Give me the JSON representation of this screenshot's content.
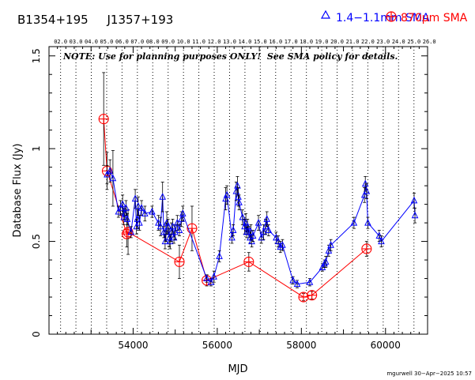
{
  "header": {
    "source_names": "B1354+195     J1357+193",
    "legend_sma_mm": "1.4−1.1mm SMA",
    "legend_sma_870": "870μm SMA",
    "note": "NOTE: Use for planning purposes ONLY!  See SMA policy for details.",
    "footer": "mgurwell 30−Apr−2025 10:57"
  },
  "colors": {
    "series_mm": "#0000ff",
    "series_870": "#ff0000",
    "axes": "#000000",
    "grid": "#000000"
  },
  "chart_data": {
    "type": "scatter",
    "title": "B1354+195     J1357+193",
    "xlabel": "MJD",
    "ylabel": "Database Flux (Jy)",
    "xlim": [
      52000,
      61000
    ],
    "ylim": [
      0,
      1.55
    ],
    "xticks": [
      54000,
      56000,
      58000,
      60000
    ],
    "yticks": [
      0,
      0.5,
      1,
      1.5
    ],
    "ytick_labels": [
      "0",
      "0.5",
      "1",
      "1.5"
    ],
    "top_axis": {
      "labels": [
        "02.0",
        "03.0",
        "04.0",
        "05.0",
        "06.0",
        "07.0",
        "08.0",
        "09.0",
        "10.0",
        "11.0",
        "12.0",
        "13.0",
        "14.0",
        "15.0",
        "16.0",
        "17.0",
        "18.0",
        "19.0",
        "20.0",
        "21.0",
        "22.0",
        "23.0",
        "24.0",
        "25.0",
        "26.0"
      ],
      "mjd": [
        52275,
        52640,
        53005,
        53371,
        53736,
        54101,
        54466,
        54832,
        55197,
        55562,
        55927,
        56293,
        56658,
        57023,
        57388,
        57754,
        58119,
        58484,
        58849,
        59215,
        59580,
        59945,
        60310,
        60676,
        61041
      ]
    },
    "series": [
      {
        "name": "1.4−1.1mm SMA",
        "marker": "triangle",
        "points": [
          {
            "x": 53380,
            "y": 0.86,
            "err": 0.05
          },
          {
            "x": 53450,
            "y": 0.88,
            "err": 0.06
          },
          {
            "x": 53520,
            "y": 0.84,
            "err": 0.15
          },
          {
            "x": 53650,
            "y": 0.66,
            "err": 0.03
          },
          {
            "x": 53700,
            "y": 0.68,
            "err": 0.04
          },
          {
            "x": 53750,
            "y": 0.7,
            "err": 0.05
          },
          {
            "x": 53780,
            "y": 0.63,
            "err": 0.04
          },
          {
            "x": 53800,
            "y": 0.65,
            "err": 0.03
          },
          {
            "x": 53830,
            "y": 0.68,
            "err": 0.04
          },
          {
            "x": 53860,
            "y": 0.62,
            "err": 0.03
          },
          {
            "x": 53950,
            "y": 0.55,
            "err": 0.03
          },
          {
            "x": 54050,
            "y": 0.73,
            "err": 0.05
          },
          {
            "x": 54080,
            "y": 0.58,
            "err": 0.04
          },
          {
            "x": 54100,
            "y": 0.62,
            "err": 0.05
          },
          {
            "x": 54120,
            "y": 0.69,
            "err": 0.05
          },
          {
            "x": 54150,
            "y": 0.6,
            "err": 0.04
          },
          {
            "x": 54200,
            "y": 0.68,
            "err": 0.04
          },
          {
            "x": 54280,
            "y": 0.65,
            "err": 0.04
          },
          {
            "x": 54450,
            "y": 0.66,
            "err": 0.03
          },
          {
            "x": 54600,
            "y": 0.6,
            "err": 0.04
          },
          {
            "x": 54650,
            "y": 0.58,
            "err": 0.05
          },
          {
            "x": 54700,
            "y": 0.74,
            "err": 0.08
          },
          {
            "x": 54730,
            "y": 0.55,
            "err": 0.03
          },
          {
            "x": 54760,
            "y": 0.5,
            "err": 0.04
          },
          {
            "x": 54780,
            "y": 0.55,
            "err": 0.05
          },
          {
            "x": 54800,
            "y": 0.6,
            "err": 0.06
          },
          {
            "x": 54830,
            "y": 0.58,
            "err": 0.04
          },
          {
            "x": 54860,
            "y": 0.52,
            "err": 0.05
          },
          {
            "x": 54880,
            "y": 0.5,
            "err": 0.04
          },
          {
            "x": 54910,
            "y": 0.55,
            "err": 0.05
          },
          {
            "x": 54940,
            "y": 0.58,
            "err": 0.04
          },
          {
            "x": 54970,
            "y": 0.52,
            "err": 0.03
          },
          {
            "x": 55000,
            "y": 0.55,
            "err": 0.04
          },
          {
            "x": 55050,
            "y": 0.6,
            "err": 0.04
          },
          {
            "x": 55100,
            "y": 0.56,
            "err": 0.03
          },
          {
            "x": 55150,
            "y": 0.62,
            "err": 0.04
          },
          {
            "x": 55180,
            "y": 0.65,
            "err": 0.04
          },
          {
            "x": 55750,
            "y": 0.3,
            "err": 0.02
          },
          {
            "x": 55850,
            "y": 0.28,
            "err": 0.02
          },
          {
            "x": 55920,
            "y": 0.31,
            "err": 0.03
          },
          {
            "x": 56050,
            "y": 0.42,
            "err": 0.03
          },
          {
            "x": 56200,
            "y": 0.73,
            "err": 0.06
          },
          {
            "x": 56230,
            "y": 0.75,
            "err": 0.05
          },
          {
            "x": 56350,
            "y": 0.52,
            "err": 0.03
          },
          {
            "x": 56380,
            "y": 0.56,
            "err": 0.03
          },
          {
            "x": 56450,
            "y": 0.77,
            "err": 0.05
          },
          {
            "x": 56480,
            "y": 0.8,
            "err": 0.05
          },
          {
            "x": 56500,
            "y": 0.74,
            "err": 0.05
          },
          {
            "x": 56520,
            "y": 0.71,
            "err": 0.04
          },
          {
            "x": 56600,
            "y": 0.63,
            "err": 0.04
          },
          {
            "x": 56650,
            "y": 0.58,
            "err": 0.04
          },
          {
            "x": 56680,
            "y": 0.6,
            "err": 0.05
          },
          {
            "x": 56700,
            "y": 0.55,
            "err": 0.03
          },
          {
            "x": 56720,
            "y": 0.58,
            "err": 0.04
          },
          {
            "x": 56750,
            "y": 0.55,
            "err": 0.03
          },
          {
            "x": 56780,
            "y": 0.52,
            "err": 0.03
          },
          {
            "x": 56800,
            "y": 0.55,
            "err": 0.04
          },
          {
            "x": 56820,
            "y": 0.5,
            "err": 0.03
          },
          {
            "x": 56850,
            "y": 0.53,
            "err": 0.03
          },
          {
            "x": 56980,
            "y": 0.6,
            "err": 0.04
          },
          {
            "x": 57050,
            "y": 0.52,
            "err": 0.03
          },
          {
            "x": 57100,
            "y": 0.55,
            "err": 0.04
          },
          {
            "x": 57150,
            "y": 0.58,
            "err": 0.04
          },
          {
            "x": 57180,
            "y": 0.62,
            "err": 0.04
          },
          {
            "x": 57220,
            "y": 0.56,
            "err": 0.03
          },
          {
            "x": 57400,
            "y": 0.52,
            "err": 0.03
          },
          {
            "x": 57450,
            "y": 0.5,
            "err": 0.03
          },
          {
            "x": 57500,
            "y": 0.47,
            "err": 0.03
          },
          {
            "x": 57550,
            "y": 0.48,
            "err": 0.03
          },
          {
            "x": 57800,
            "y": 0.29,
            "err": 0.02
          },
          {
            "x": 57900,
            "y": 0.27,
            "err": 0.02
          },
          {
            "x": 58200,
            "y": 0.28,
            "err": 0.02
          },
          {
            "x": 58500,
            "y": 0.36,
            "err": 0.02
          },
          {
            "x": 58550,
            "y": 0.38,
            "err": 0.02
          },
          {
            "x": 58580,
            "y": 0.39,
            "err": 0.03
          },
          {
            "x": 58650,
            "y": 0.45,
            "err": 0.03
          },
          {
            "x": 58700,
            "y": 0.48,
            "err": 0.03
          },
          {
            "x": 59250,
            "y": 0.6,
            "err": 0.03
          },
          {
            "x": 59500,
            "y": 0.75,
            "err": 0.04
          },
          {
            "x": 59520,
            "y": 0.81,
            "err": 0.04
          },
          {
            "x": 59550,
            "y": 0.77,
            "err": 0.04
          },
          {
            "x": 59580,
            "y": 0.6,
            "err": 0.03
          },
          {
            "x": 59850,
            "y": 0.53,
            "err": 0.03
          },
          {
            "x": 59900,
            "y": 0.5,
            "err": 0.03
          },
          {
            "x": 60680,
            "y": 0.72,
            "err": 0.04
          },
          {
            "x": 60700,
            "y": 0.64,
            "err": 0.04
          }
        ]
      },
      {
        "name": "870μm SMA",
        "marker": "circle-plus",
        "points": [
          {
            "x": 53300,
            "y": 1.16,
            "err": 0.25
          },
          {
            "x": 53380,
            "y": 0.88,
            "err": 0.1
          },
          {
            "x": 53850,
            "y": 0.54,
            "err": 0.07
          },
          {
            "x": 53880,
            "y": 0.55,
            "err": 0.12
          },
          {
            "x": 55100,
            "y": 0.39,
            "err": 0.09
          },
          {
            "x": 55400,
            "y": 0.57,
            "err": 0.12
          },
          {
            "x": 55750,
            "y": 0.29,
            "err": 0.03
          },
          {
            "x": 56750,
            "y": 0.39,
            "err": 0.05
          },
          {
            "x": 58050,
            "y": 0.2,
            "err": 0.02
          },
          {
            "x": 58250,
            "y": 0.21,
            "err": 0.02
          },
          {
            "x": 59550,
            "y": 0.46,
            "err": 0.04
          }
        ]
      }
    ]
  }
}
